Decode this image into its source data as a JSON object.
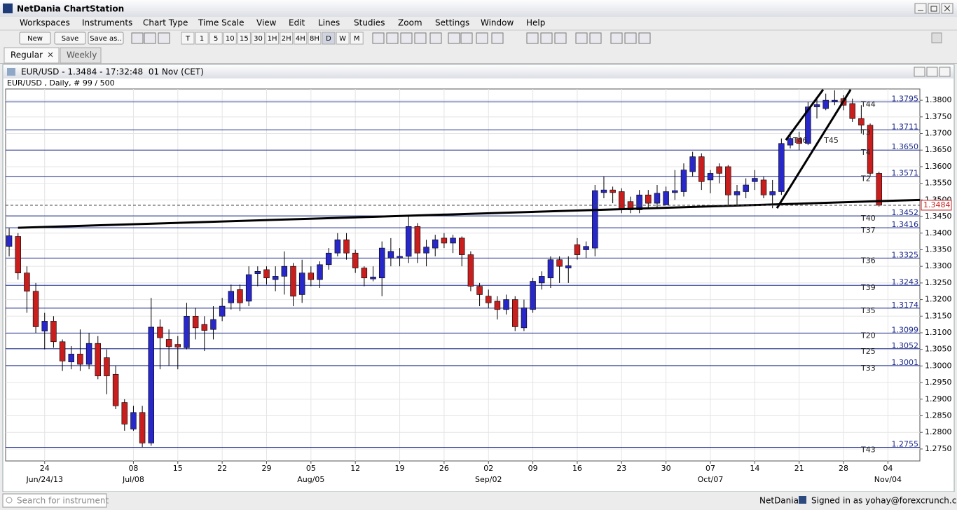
{
  "app": {
    "title": "NetDania ChartStation",
    "menu": [
      "Workspaces",
      "Instruments",
      "Chart Type",
      "Time Scale",
      "View",
      "Edit",
      "Lines",
      "Studies",
      "Zoom",
      "Settings",
      "Window",
      "Help"
    ],
    "toolbar": {
      "buttons": [
        "New",
        "Save",
        "Save as.."
      ],
      "periods": [
        "T",
        "1",
        "5",
        "10",
        "15",
        "30",
        "1H",
        "2H",
        "4H",
        "8H",
        "D",
        "W",
        "M"
      ]
    },
    "tabs": [
      "Regular",
      "Weekly"
    ],
    "status": {
      "search_placeholder": "Search for instrument",
      "brand": "NetDania",
      "signed_in": "Signed in as yohay@forexcrunch.com"
    }
  },
  "chart_window": {
    "title": "EUR/USD - 1.3484 - 17:32:48  01 Nov (CET)"
  },
  "chart_data": {
    "type": "candlestick",
    "subtitle": "EUR/USD , Daily, # 99 / 500",
    "open": [
      1.336,
      1.339,
      1.328,
      1.3225,
      1.3105,
      1.3135,
      1.3073,
      1.3012,
      1.3036,
      1.3005,
      1.3068,
      1.3025,
      1.2975,
      1.289,
      1.281,
      1.286,
      1.2768,
      1.3117,
      1.308,
      1.3065,
      1.3055,
      1.315,
      1.3125,
      1.311,
      1.315,
      1.319,
      1.323,
      1.3195,
      1.3278,
      1.329,
      1.326,
      1.327,
      1.33,
      1.3215,
      1.328,
      1.326,
      1.3305,
      1.334,
      1.338,
      1.334,
      1.3295,
      1.3262,
      1.3265,
      1.3325,
      1.3325,
      1.333,
      1.342,
      1.334,
      1.3355,
      1.3385,
      1.337,
      1.3385,
      1.3335,
      1.324,
      1.321,
      1.3195,
      1.317,
      1.32,
      1.3115,
      1.317,
      1.325,
      1.3265,
      1.332,
      1.3295,
      1.3365,
      1.335,
      1.3355,
      1.3522,
      1.353,
      1.3525,
      1.3495,
      1.347,
      1.3515,
      1.349,
      1.3485,
      1.3522,
      1.3525,
      1.3585,
      1.363,
      1.356,
      1.36,
      1.36,
      1.3515,
      1.3525,
      1.3555,
      1.356,
      1.3515,
      1.3525,
      1.3665,
      1.3685,
      1.367,
      1.378,
      1.3775,
      1.3795,
      1.3805,
      1.379,
      1.3745,
      1.3725,
      1.358
    ],
    "high": [
      1.3415,
      1.34,
      1.33,
      1.325,
      1.316,
      1.315,
      1.308,
      1.306,
      1.311,
      1.31,
      1.309,
      1.305,
      1.3,
      1.29,
      1.288,
      1.288,
      1.3205,
      1.314,
      1.311,
      1.309,
      1.319,
      1.3175,
      1.315,
      1.318,
      1.3205,
      1.3245,
      1.3245,
      1.33,
      1.33,
      1.33,
      1.33,
      1.3345,
      1.331,
      1.332,
      1.33,
      1.3315,
      1.3355,
      1.34,
      1.34,
      1.335,
      1.33,
      1.33,
      1.3375,
      1.3385,
      1.3355,
      1.345,
      1.343,
      1.338,
      1.3395,
      1.34,
      1.3395,
      1.339,
      1.3345,
      1.325,
      1.323,
      1.321,
      1.3215,
      1.321,
      1.32,
      1.3265,
      1.3285,
      1.333,
      1.333,
      1.333,
      1.3385,
      1.3375,
      1.3545,
      1.357,
      1.354,
      1.3535,
      1.351,
      1.353,
      1.353,
      1.3545,
      1.354,
      1.359,
      1.361,
      1.3645,
      1.364,
      1.359,
      1.361,
      1.3605,
      1.3545,
      1.3565,
      1.359,
      1.357,
      1.356,
      1.3685,
      1.3705,
      1.3705,
      1.3795,
      1.3805,
      1.382,
      1.383,
      1.3815,
      1.3805,
      1.3785,
      1.373,
      1.3585
    ],
    "low": [
      1.333,
      1.326,
      1.316,
      1.31,
      1.305,
      1.3055,
      1.2985,
      1.299,
      1.2985,
      1.299,
      1.296,
      1.2915,
      1.287,
      1.2805,
      1.2805,
      1.2755,
      1.276,
      1.299,
      1.3,
      1.299,
      1.305,
      1.308,
      1.3045,
      1.308,
      1.3135,
      1.317,
      1.3165,
      1.318,
      1.324,
      1.3245,
      1.3225,
      1.3215,
      1.318,
      1.319,
      1.324,
      1.3235,
      1.329,
      1.333,
      1.332,
      1.328,
      1.324,
      1.3255,
      1.321,
      1.33,
      1.33,
      1.331,
      1.331,
      1.33,
      1.333,
      1.3355,
      1.334,
      1.33,
      1.3225,
      1.318,
      1.3175,
      1.314,
      1.3155,
      1.3105,
      1.3105,
      1.316,
      1.323,
      1.3235,
      1.325,
      1.325,
      1.332,
      1.3325,
      1.333,
      1.3505,
      1.349,
      1.346,
      1.346,
      1.346,
      1.3475,
      1.3475,
      1.3485,
      1.35,
      1.351,
      1.357,
      1.353,
      1.352,
      1.355,
      1.348,
      1.3485,
      1.3505,
      1.353,
      1.3505,
      1.3475,
      1.3515,
      1.3655,
      1.365,
      1.3665,
      1.3745,
      1.377,
      1.3785,
      1.377,
      1.3735,
      1.37,
      1.357,
      1.348
    ],
    "close": [
      1.3392,
      1.328,
      1.3225,
      1.3118,
      1.3135,
      1.3073,
      1.3015,
      1.3036,
      1.3005,
      1.3068,
      1.297,
      1.297,
      1.288,
      1.2825,
      1.286,
      1.2768,
      1.3117,
      1.3085,
      1.3058,
      1.3057,
      1.315,
      1.3115,
      1.3107,
      1.314,
      1.318,
      1.3225,
      1.319,
      1.3275,
      1.3285,
      1.3265,
      1.327,
      1.33,
      1.321,
      1.328,
      1.326,
      1.3305,
      1.334,
      1.338,
      1.334,
      1.3295,
      1.3265,
      1.3268,
      1.3355,
      1.3345,
      1.333,
      1.342,
      1.334,
      1.3358,
      1.338,
      1.337,
      1.3385,
      1.3335,
      1.324,
      1.3215,
      1.319,
      1.317,
      1.32,
      1.3118,
      1.3175,
      1.3255,
      1.327,
      1.332,
      1.33,
      1.3302,
      1.3335,
      1.336,
      1.3528,
      1.353,
      1.3522,
      1.347,
      1.347,
      1.3515,
      1.349,
      1.352,
      1.3525,
      1.3528,
      1.359,
      1.363,
      1.3555,
      1.358,
      1.358,
      1.3515,
      1.3525,
      1.3545,
      1.3565,
      1.3515,
      1.3525,
      1.367,
      1.3685,
      1.367,
      1.378,
      1.3787,
      1.38,
      1.38,
      1.3785,
      1.3745,
      1.3725,
      1.358,
      1.3484
    ],
    "up_color": "#2828c8",
    "down_color": "#c81e1e",
    "xlim": [
      -0.4,
      102.6
    ],
    "xticks": [
      {
        "value": 4,
        "label": "24"
      },
      {
        "value": 14,
        "label": "08"
      },
      {
        "value": 19,
        "label": "15"
      },
      {
        "value": 24,
        "label": "22"
      },
      {
        "value": 29,
        "label": "29"
      },
      {
        "value": 34,
        "label": "05"
      },
      {
        "value": 39,
        "label": "12"
      },
      {
        "value": 44,
        "label": "19"
      },
      {
        "value": 49,
        "label": "26"
      },
      {
        "value": 54,
        "label": "02"
      },
      {
        "value": 59,
        "label": "09"
      },
      {
        "value": 64,
        "label": "16"
      },
      {
        "value": 69,
        "label": "23"
      },
      {
        "value": 74,
        "label": "30"
      },
      {
        "value": 79,
        "label": "07"
      },
      {
        "value": 84,
        "label": "14"
      },
      {
        "value": 89,
        "label": "21"
      },
      {
        "value": 94,
        "label": "28"
      },
      {
        "value": 99,
        "label": "04"
      }
    ],
    "xticks_major": [
      {
        "value": 4,
        "label": "Jun/24/13"
      },
      {
        "value": 14,
        "label": "Jul/08"
      },
      {
        "value": 34,
        "label": "Aug/05"
      },
      {
        "value": 54,
        "label": "Sep/02"
      },
      {
        "value": 79,
        "label": "Oct/07"
      },
      {
        "value": 99,
        "label": "Nov/04"
      }
    ],
    "ylim": [
      1.2714,
      1.3834
    ],
    "yticks": [
      {
        "value": 1.275,
        "label": "1.2750"
      },
      {
        "value": 1.28,
        "label": "1.2800"
      },
      {
        "value": 1.285,
        "label": "1.2850"
      },
      {
        "value": 1.29,
        "label": "1.2900"
      },
      {
        "value": 1.295,
        "label": "1.2950"
      },
      {
        "value": 1.3,
        "label": "1.3000"
      },
      {
        "value": 1.305,
        "label": "1.3050"
      },
      {
        "value": 1.31,
        "label": "1.3100"
      },
      {
        "value": 1.315,
        "label": "1.3150"
      },
      {
        "value": 1.32,
        "label": "1.3200"
      },
      {
        "value": 1.325,
        "label": "1.3250"
      },
      {
        "value": 1.33,
        "label": "1.3300"
      },
      {
        "value": 1.335,
        "label": "1.3350"
      },
      {
        "value": 1.34,
        "label": "1.3400"
      },
      {
        "value": 1.345,
        "label": "1.3450"
      },
      {
        "value": 1.35,
        "label": "1.3500"
      },
      {
        "value": 1.355,
        "label": "1.3550"
      },
      {
        "value": 1.36,
        "label": "1.3600"
      },
      {
        "value": 1.365,
        "label": "1.3650"
      },
      {
        "value": 1.37,
        "label": "1.3700"
      },
      {
        "value": 1.375,
        "label": "1.3750"
      },
      {
        "value": 1.38,
        "label": "1.3800"
      }
    ],
    "grid": true,
    "level_color": "#1c2a8c",
    "levels": [
      {
        "name": "T44",
        "value": 1.3795,
        "label": "1.3795"
      },
      {
        "name": "T3",
        "value": 1.3711,
        "label": "1.3711"
      },
      {
        "name": "T4",
        "value": 1.365,
        "label": "1.3650"
      },
      {
        "name": "T2",
        "value": 1.3571,
        "label": "1.3571"
      },
      {
        "name": "T40",
        "value": 1.3452,
        "label": "1.3452"
      },
      {
        "name": "T37",
        "value": 1.3416,
        "label": "1.3416"
      },
      {
        "name": "T36",
        "value": 1.3325,
        "label": "1.3325"
      },
      {
        "name": "T39",
        "value": 1.3243,
        "label": "1.3243"
      },
      {
        "name": "T35",
        "value": 1.3174,
        "label": "1.3174"
      },
      {
        "name": "T20",
        "value": 1.3099,
        "label": "1.3099"
      },
      {
        "name": "T25",
        "value": 1.3052,
        "label": "1.3052"
      },
      {
        "name": "T33",
        "value": 1.3001,
        "label": "1.3001"
      },
      {
        "name": "T43",
        "value": 1.2755,
        "label": "1.2755"
      }
    ],
    "last_price": 1.3484,
    "trendlines": [
      {
        "x": [
          1,
          102.6
        ],
        "y": [
          1.3416,
          1.35
        ]
      },
      {
        "x": [
          86.5,
          94.8
        ],
        "y": [
          1.3475,
          1.3832
        ]
      },
      {
        "x": [
          87.5,
          91.7
        ],
        "y": [
          1.368,
          1.3832
        ]
      }
    ],
    "annotations": [
      {
        "text": "T46",
        "x": 88.3,
        "y": 1.3678
      },
      {
        "text": "T45",
        "x": 91.8,
        "y": 1.3678
      }
    ]
  }
}
